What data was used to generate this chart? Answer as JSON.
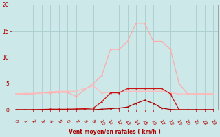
{
  "x": [
    0,
    1,
    2,
    3,
    4,
    5,
    6,
    7,
    8,
    9,
    10,
    11,
    12,
    13,
    14,
    15,
    16,
    17,
    18,
    19,
    20,
    21,
    22,
    23
  ],
  "line_dark_y": [
    0.0,
    0.0,
    0.0,
    0.0,
    0.0,
    0.0,
    0.0,
    0.0,
    0.0,
    0.0,
    0.1,
    0.2,
    0.3,
    0.5,
    1.2,
    1.8,
    1.2,
    0.3,
    0.05,
    0.0,
    0.0,
    0.0,
    0.0,
    0.0
  ],
  "line_med_y": [
    0.0,
    0.0,
    0.0,
    0.05,
    0.1,
    0.1,
    0.1,
    0.15,
    0.2,
    0.3,
    1.5,
    3.2,
    3.2,
    4.0,
    4.0,
    4.0,
    4.0,
    4.0,
    3.0,
    0.0,
    0.0,
    0.0,
    0.0,
    0.0
  ],
  "line_pink1_y": [
    3.0,
    3.0,
    3.0,
    3.2,
    3.2,
    3.3,
    3.3,
    2.5,
    3.8,
    5.0,
    6.5,
    11.5,
    11.5,
    13.0,
    16.5,
    16.5,
    13.0,
    13.0,
    11.5,
    5.0,
    3.0,
    3.0,
    3.0,
    3.0
  ],
  "line_pink2_y": [
    3.0,
    3.1,
    3.1,
    3.2,
    3.4,
    3.5,
    3.5,
    3.5,
    4.0,
    4.5,
    3.2,
    3.3,
    3.3,
    3.5,
    3.5,
    3.5,
    3.5,
    3.5,
    3.2,
    3.0,
    3.0,
    3.0,
    3.0,
    3.0
  ],
  "bg_color": "#cce8e8",
  "grid_color": "#aacccc",
  "color_dark": "#aa0000",
  "color_med": "#cc1111",
  "color_pink1": "#ffaaaa",
  "color_pink2": "#ffbbbb",
  "xlabel": "Vent moyen/en rafales ( km/h )",
  "ylim": [
    0,
    20
  ],
  "yticks": [
    0,
    5,
    10,
    15,
    20
  ],
  "xticks": [
    0,
    1,
    2,
    3,
    4,
    5,
    6,
    7,
    8,
    9,
    10,
    11,
    12,
    13,
    14,
    15,
    16,
    17,
    18,
    19,
    20,
    21,
    22,
    23
  ]
}
